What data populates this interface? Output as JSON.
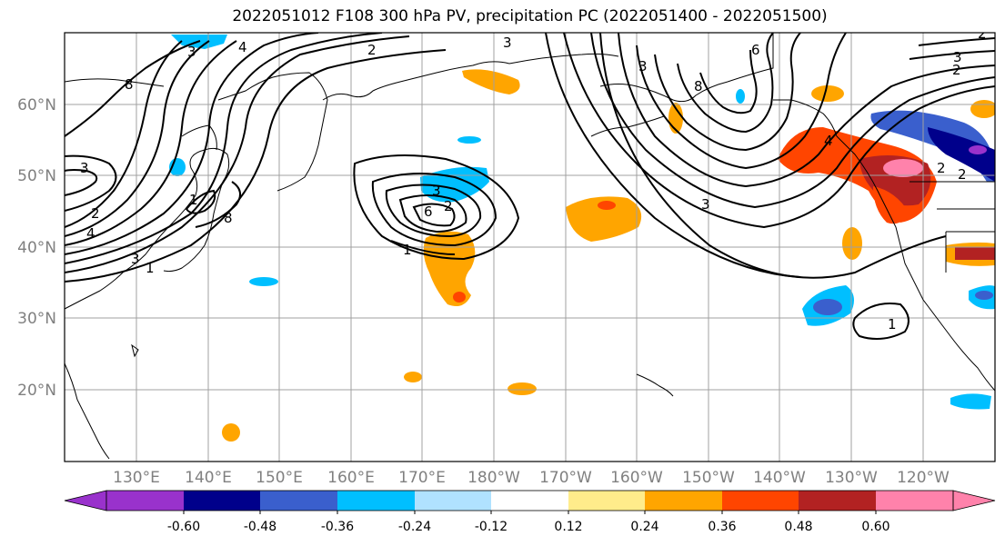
{
  "title": "2022051012 F108 300 hPa PV, precipitation PC (2022051400 - 2022051500)",
  "map": {
    "lat_labels": [
      "60°N",
      "50°N",
      "40°N",
      "30°N",
      "20°N"
    ],
    "lon_labels": [
      "130°E",
      "140°E",
      "150°E",
      "160°E",
      "170°E",
      "180°W",
      "170°W",
      "160°W",
      "150°W",
      "140°W",
      "130°W",
      "120°W"
    ],
    "contour_labels": [
      "8",
      "4",
      "3",
      "2",
      "3",
      "2",
      "3",
      "6",
      "1",
      "8",
      "6",
      "3",
      "4",
      "2",
      "1",
      "3",
      "2",
      "3",
      "2",
      "4",
      "3",
      "1",
      "8",
      "1",
      "2",
      "3",
      "2"
    ]
  },
  "colorbar": {
    "tick_labels": [
      "-0.60",
      "-0.48",
      "-0.36",
      "-0.24",
      "-0.12",
      "0.12",
      "0.24",
      "0.36",
      "0.48",
      "0.60"
    ],
    "colors": [
      "#9932cc",
      "#00008b",
      "#3a5fcd",
      "#00bfff",
      "#b0e2ff",
      "#ffffff",
      "#ffec8b",
      "#ffa500",
      "#ff4500",
      "#b22222",
      "#ff82ab"
    ]
  }
}
